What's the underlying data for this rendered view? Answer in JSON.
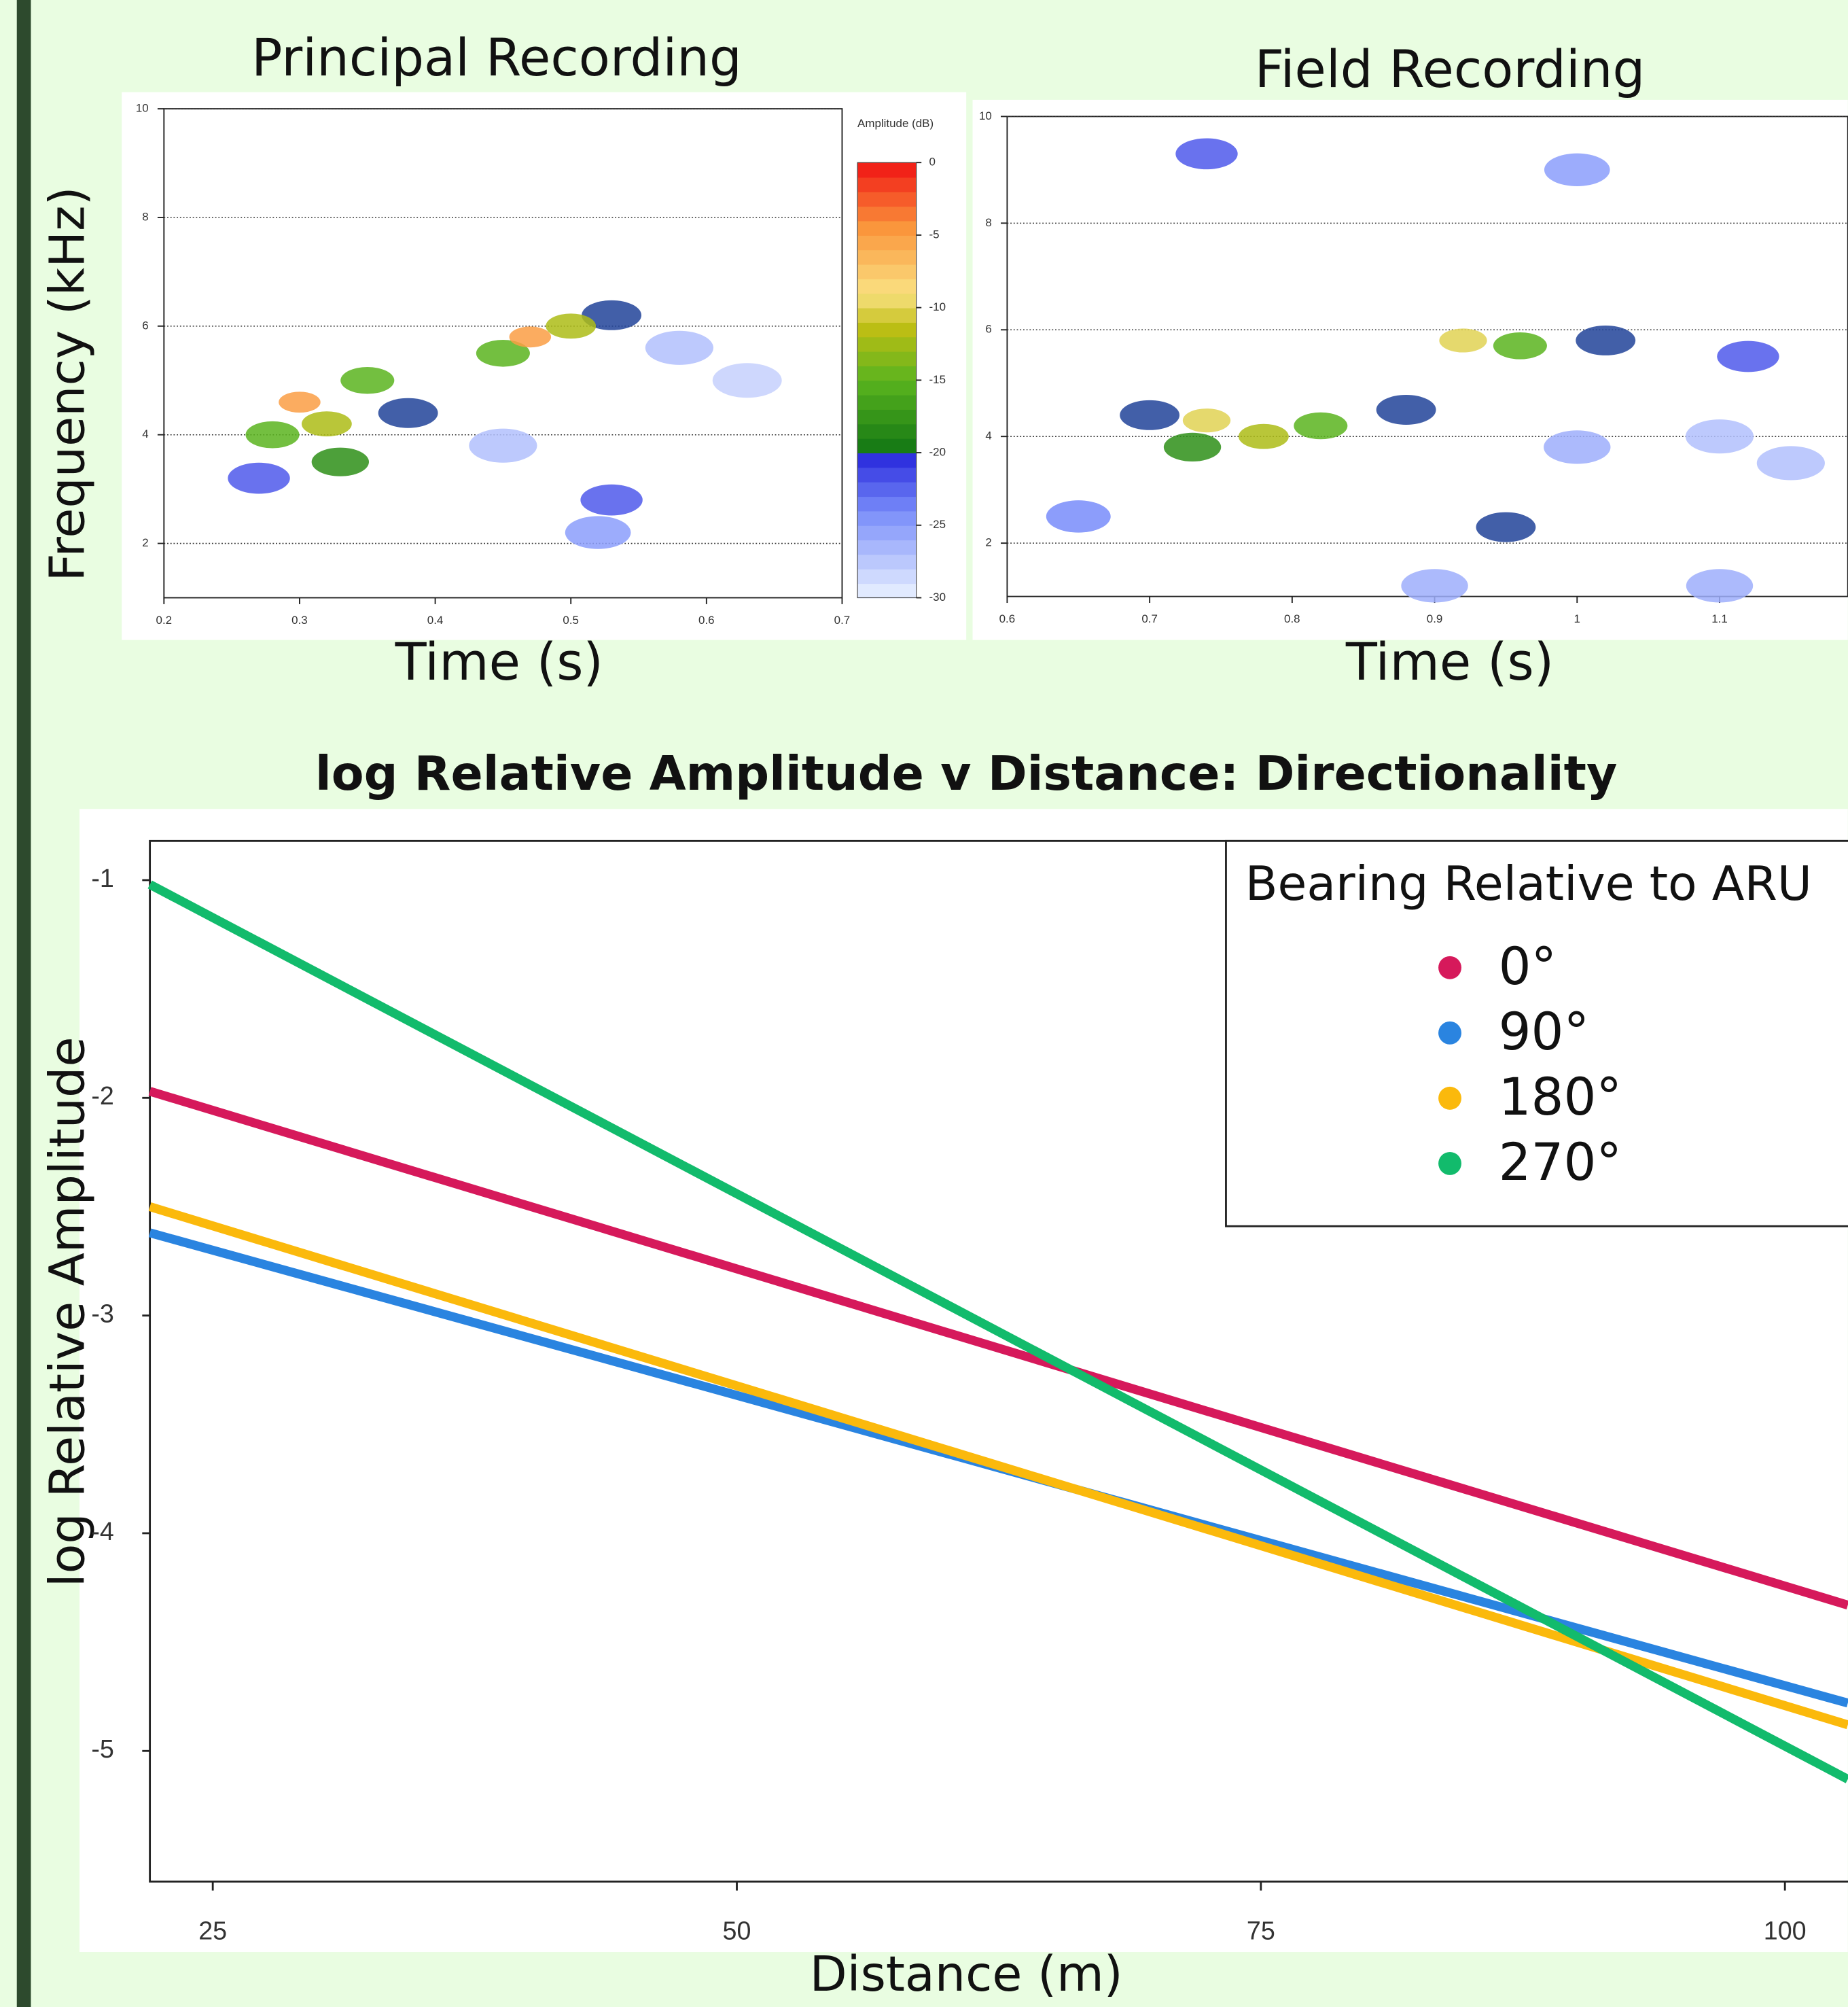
{
  "chart_data": [
    {
      "type": "spectrogram",
      "title": "Principal Recording",
      "ylabel": "Frequency (kHz)",
      "xlabel": "Time (s)",
      "xlim": [
        0.2,
        0.7
      ],
      "xticks": [
        0.2,
        0.3,
        0.4,
        0.5,
        0.6,
        0.7
      ],
      "ylim": [
        1,
        10
      ],
      "yticks": [
        2,
        4,
        6,
        8,
        10
      ],
      "grid": true,
      "colorbar_title": "Amplitude (dB)",
      "clim": [
        -30,
        0
      ],
      "cticks": [
        0,
        -5,
        -10,
        -15,
        -20,
        -25,
        -30
      ],
      "points": {
        "time": [
          0.27,
          0.33,
          0.38,
          0.45,
          0.52,
          0.53,
          0.58,
          0.63,
          0.53,
          0.35,
          0.28,
          0.32,
          0.45,
          0.5,
          0.3,
          0.47
        ],
        "frequency": [
          3.2,
          3.5,
          4.4,
          3.8,
          2.2,
          2.8,
          5.6,
          5.0,
          6.2,
          5.0,
          4.0,
          4.2,
          5.5,
          6.0,
          4.6,
          5.8
        ],
        "amplitude": [
          -22,
          -18,
          -20,
          -27,
          -25,
          -22,
          -27,
          -28,
          -20,
          -15,
          -15,
          -12,
          -15,
          -12,
          -5,
          -5
        ]
      }
    },
    {
      "type": "spectrogram",
      "title": "Field Recording",
      "xlabel": "Time (s)",
      "xlim": [
        0.6,
        1.19
      ],
      "xticks": [
        0.6,
        0.7,
        0.8,
        0.9,
        1,
        1.1
      ],
      "ylim": [
        1,
        10
      ],
      "yticks": [
        2,
        4,
        6,
        8,
        10
      ],
      "grid": true,
      "points": {
        "time": [
          0.65,
          0.9,
          1.1,
          1.1,
          1.15,
          1.0,
          1.0,
          0.74,
          0.7,
          0.88,
          1.02,
          0.95,
          1.12,
          0.73,
          0.82,
          0.96,
          0.78,
          0.74,
          0.92
        ],
        "frequency": [
          2.5,
          1.2,
          1.2,
          4.0,
          3.5,
          3.8,
          9.0,
          9.3,
          4.4,
          4.5,
          5.8,
          2.3,
          5.5,
          3.8,
          4.2,
          5.7,
          4.0,
          4.3,
          5.8
        ],
        "amplitude": [
          -24,
          -26,
          -26,
          -27,
          -27,
          -26,
          -25,
          -22,
          -20,
          -20,
          -20,
          -20,
          -22,
          -18,
          -15,
          -15,
          -12,
          -10,
          -10
        ]
      }
    },
    {
      "type": "line",
      "title": "log Relative Amplitude v Distance: Directionality",
      "xlabel": "Distance (m)",
      "ylabel": "log Relative Amplitude",
      "x": [
        22,
        103
      ],
      "xlim": [
        22,
        103
      ],
      "xticks": [
        25,
        50,
        75,
        100
      ],
      "ylim": [
        -5.6,
        -0.82
      ],
      "yticks": [
        -1,
        -2,
        -3,
        -4,
        -5
      ],
      "legend_title": "Bearing Relative to ARU",
      "legend": "top-right",
      "series": [
        {
          "name": "0°",
          "color": "#d6195b",
          "values": [
            -1.97,
            -4.33
          ]
        },
        {
          "name": "90°",
          "color": "#2a84e0",
          "values": [
            -2.62,
            -4.78
          ]
        },
        {
          "name": "180°",
          "color": "#fbb90c",
          "values": [
            -2.5,
            -4.88
          ]
        },
        {
          "name": "270°",
          "color": "#12bb6c",
          "values": [
            -1.02,
            -5.13
          ]
        }
      ]
    }
  ]
}
